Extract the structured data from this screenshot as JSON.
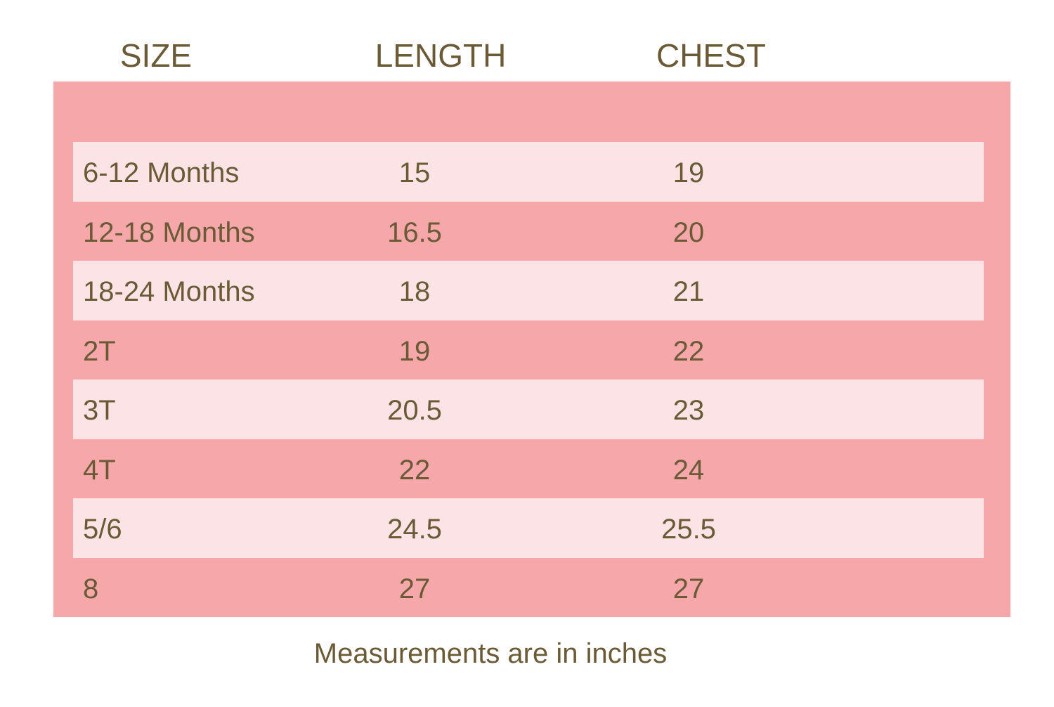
{
  "table": {
    "columns": [
      "SIZE",
      "LENGTH",
      "CHEST"
    ],
    "rows": [
      [
        "6-12 Months",
        "15",
        "19"
      ],
      [
        "12-18 Months",
        "16.5",
        "20"
      ],
      [
        "18-24 Months",
        "18",
        "21"
      ],
      [
        "2T",
        "19",
        "22"
      ],
      [
        "3T",
        "20.5",
        "23"
      ],
      [
        "4T",
        "22",
        "24"
      ],
      [
        "5/6",
        "24.5",
        "25.5"
      ],
      [
        "8",
        "27",
        "27"
      ]
    ]
  },
  "footnote": "Measurements are in inches"
}
